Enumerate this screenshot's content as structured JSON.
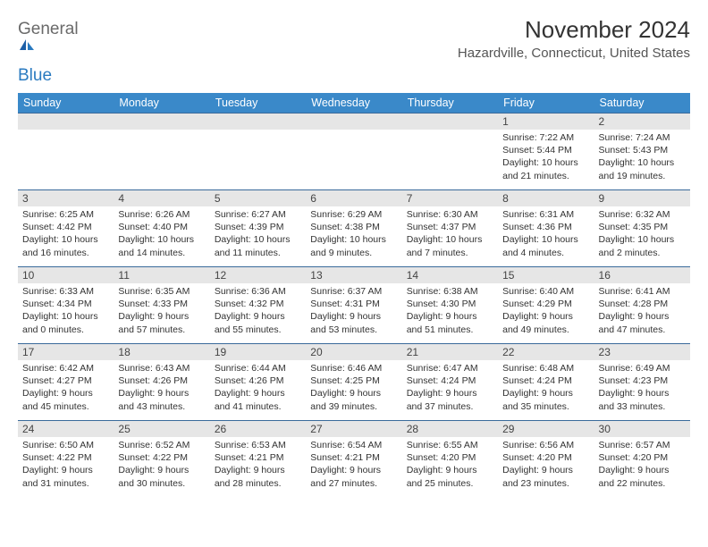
{
  "logo": {
    "word1": "General",
    "word2": "Blue"
  },
  "title": "November 2024",
  "location": "Hazardville, Connecticut, United States",
  "colors": {
    "header_bg": "#3a89c9",
    "header_text": "#ffffff",
    "daynum_bg": "#e6e6e6",
    "cell_border": "#3a6a9a",
    "logo_gray": "#6a6a6a",
    "logo_blue": "#2a7ac0"
  },
  "day_names": [
    "Sunday",
    "Monday",
    "Tuesday",
    "Wednesday",
    "Thursday",
    "Friday",
    "Saturday"
  ],
  "weeks": [
    [
      {
        "n": "",
        "sunrise": "",
        "sunset": "",
        "daylight": ""
      },
      {
        "n": "",
        "sunrise": "",
        "sunset": "",
        "daylight": ""
      },
      {
        "n": "",
        "sunrise": "",
        "sunset": "",
        "daylight": ""
      },
      {
        "n": "",
        "sunrise": "",
        "sunset": "",
        "daylight": ""
      },
      {
        "n": "",
        "sunrise": "",
        "sunset": "",
        "daylight": ""
      },
      {
        "n": "1",
        "sunrise": "Sunrise: 7:22 AM",
        "sunset": "Sunset: 5:44 PM",
        "daylight": "Daylight: 10 hours and 21 minutes."
      },
      {
        "n": "2",
        "sunrise": "Sunrise: 7:24 AM",
        "sunset": "Sunset: 5:43 PM",
        "daylight": "Daylight: 10 hours and 19 minutes."
      }
    ],
    [
      {
        "n": "3",
        "sunrise": "Sunrise: 6:25 AM",
        "sunset": "Sunset: 4:42 PM",
        "daylight": "Daylight: 10 hours and 16 minutes."
      },
      {
        "n": "4",
        "sunrise": "Sunrise: 6:26 AM",
        "sunset": "Sunset: 4:40 PM",
        "daylight": "Daylight: 10 hours and 14 minutes."
      },
      {
        "n": "5",
        "sunrise": "Sunrise: 6:27 AM",
        "sunset": "Sunset: 4:39 PM",
        "daylight": "Daylight: 10 hours and 11 minutes."
      },
      {
        "n": "6",
        "sunrise": "Sunrise: 6:29 AM",
        "sunset": "Sunset: 4:38 PM",
        "daylight": "Daylight: 10 hours and 9 minutes."
      },
      {
        "n": "7",
        "sunrise": "Sunrise: 6:30 AM",
        "sunset": "Sunset: 4:37 PM",
        "daylight": "Daylight: 10 hours and 7 minutes."
      },
      {
        "n": "8",
        "sunrise": "Sunrise: 6:31 AM",
        "sunset": "Sunset: 4:36 PM",
        "daylight": "Daylight: 10 hours and 4 minutes."
      },
      {
        "n": "9",
        "sunrise": "Sunrise: 6:32 AM",
        "sunset": "Sunset: 4:35 PM",
        "daylight": "Daylight: 10 hours and 2 minutes."
      }
    ],
    [
      {
        "n": "10",
        "sunrise": "Sunrise: 6:33 AM",
        "sunset": "Sunset: 4:34 PM",
        "daylight": "Daylight: 10 hours and 0 minutes."
      },
      {
        "n": "11",
        "sunrise": "Sunrise: 6:35 AM",
        "sunset": "Sunset: 4:33 PM",
        "daylight": "Daylight: 9 hours and 57 minutes."
      },
      {
        "n": "12",
        "sunrise": "Sunrise: 6:36 AM",
        "sunset": "Sunset: 4:32 PM",
        "daylight": "Daylight: 9 hours and 55 minutes."
      },
      {
        "n": "13",
        "sunrise": "Sunrise: 6:37 AM",
        "sunset": "Sunset: 4:31 PM",
        "daylight": "Daylight: 9 hours and 53 minutes."
      },
      {
        "n": "14",
        "sunrise": "Sunrise: 6:38 AM",
        "sunset": "Sunset: 4:30 PM",
        "daylight": "Daylight: 9 hours and 51 minutes."
      },
      {
        "n": "15",
        "sunrise": "Sunrise: 6:40 AM",
        "sunset": "Sunset: 4:29 PM",
        "daylight": "Daylight: 9 hours and 49 minutes."
      },
      {
        "n": "16",
        "sunrise": "Sunrise: 6:41 AM",
        "sunset": "Sunset: 4:28 PM",
        "daylight": "Daylight: 9 hours and 47 minutes."
      }
    ],
    [
      {
        "n": "17",
        "sunrise": "Sunrise: 6:42 AM",
        "sunset": "Sunset: 4:27 PM",
        "daylight": "Daylight: 9 hours and 45 minutes."
      },
      {
        "n": "18",
        "sunrise": "Sunrise: 6:43 AM",
        "sunset": "Sunset: 4:26 PM",
        "daylight": "Daylight: 9 hours and 43 minutes."
      },
      {
        "n": "19",
        "sunrise": "Sunrise: 6:44 AM",
        "sunset": "Sunset: 4:26 PM",
        "daylight": "Daylight: 9 hours and 41 minutes."
      },
      {
        "n": "20",
        "sunrise": "Sunrise: 6:46 AM",
        "sunset": "Sunset: 4:25 PM",
        "daylight": "Daylight: 9 hours and 39 minutes."
      },
      {
        "n": "21",
        "sunrise": "Sunrise: 6:47 AM",
        "sunset": "Sunset: 4:24 PM",
        "daylight": "Daylight: 9 hours and 37 minutes."
      },
      {
        "n": "22",
        "sunrise": "Sunrise: 6:48 AM",
        "sunset": "Sunset: 4:24 PM",
        "daylight": "Daylight: 9 hours and 35 minutes."
      },
      {
        "n": "23",
        "sunrise": "Sunrise: 6:49 AM",
        "sunset": "Sunset: 4:23 PM",
        "daylight": "Daylight: 9 hours and 33 minutes."
      }
    ],
    [
      {
        "n": "24",
        "sunrise": "Sunrise: 6:50 AM",
        "sunset": "Sunset: 4:22 PM",
        "daylight": "Daylight: 9 hours and 31 minutes."
      },
      {
        "n": "25",
        "sunrise": "Sunrise: 6:52 AM",
        "sunset": "Sunset: 4:22 PM",
        "daylight": "Daylight: 9 hours and 30 minutes."
      },
      {
        "n": "26",
        "sunrise": "Sunrise: 6:53 AM",
        "sunset": "Sunset: 4:21 PM",
        "daylight": "Daylight: 9 hours and 28 minutes."
      },
      {
        "n": "27",
        "sunrise": "Sunrise: 6:54 AM",
        "sunset": "Sunset: 4:21 PM",
        "daylight": "Daylight: 9 hours and 27 minutes."
      },
      {
        "n": "28",
        "sunrise": "Sunrise: 6:55 AM",
        "sunset": "Sunset: 4:20 PM",
        "daylight": "Daylight: 9 hours and 25 minutes."
      },
      {
        "n": "29",
        "sunrise": "Sunrise: 6:56 AM",
        "sunset": "Sunset: 4:20 PM",
        "daylight": "Daylight: 9 hours and 23 minutes."
      },
      {
        "n": "30",
        "sunrise": "Sunrise: 6:57 AM",
        "sunset": "Sunset: 4:20 PM",
        "daylight": "Daylight: 9 hours and 22 minutes."
      }
    ]
  ]
}
